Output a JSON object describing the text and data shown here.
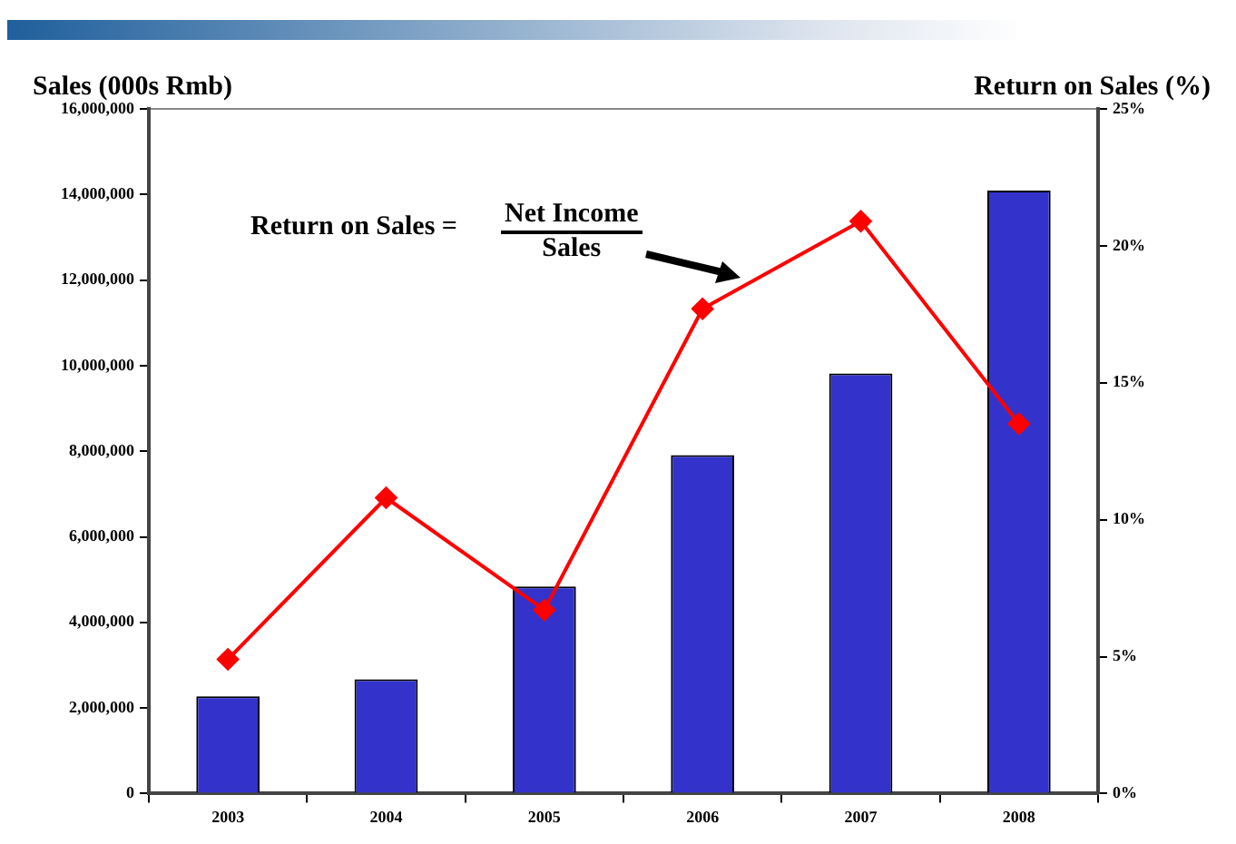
{
  "chart_data": {
    "type": "bar",
    "ylabel": "Sales (000s Rmb)",
    "y2label": "Return on Sales (%)",
    "categories": [
      "2003",
      "2004",
      "2005",
      "2006",
      "2007",
      "2008"
    ],
    "series": [
      {
        "color": "#3333cc",
        "values": [
          2270000,
          2670000,
          4840000,
          7910000,
          9820000,
          14090000
        ]
      },
      {
        "type": "line",
        "axis": "y2",
        "color": "#ff0000",
        "values": [
          4.9,
          10.8,
          6.7,
          17.7,
          20.9,
          13.5
        ]
      }
    ],
    "ylim": [
      0,
      16000000
    ],
    "yticks": [
      {
        "value": 0,
        "label": "0"
      },
      {
        "value": 2000000,
        "label": "2,000,000"
      },
      {
        "value": 4000000,
        "label": "4,000,000"
      },
      {
        "value": 6000000,
        "label": "6,000,000"
      },
      {
        "value": 8000000,
        "label": "8,000,000"
      },
      {
        "value": 10000000,
        "label": "10,000,000"
      },
      {
        "value": 12000000,
        "label": "12,000,000"
      },
      {
        "value": 14000000,
        "label": "14,000,000"
      },
      {
        "value": 16000000,
        "label": "16,000,000"
      }
    ],
    "y2lim": [
      0,
      25
    ],
    "y2ticks": [
      {
        "value": 0,
        "label": "0%"
      },
      {
        "value": 5,
        "label": "5%"
      },
      {
        "value": 10,
        "label": "10%"
      },
      {
        "value": 15,
        "label": "15%"
      },
      {
        "value": 20,
        "label": "20%"
      },
      {
        "value": 25,
        "label": "25%"
      }
    ],
    "annotations": [
      "Return on Sales =",
      "Net Income",
      "Sales"
    ],
    "grid": false,
    "legend": false,
    "marker": "diamond",
    "line_style": "solid"
  }
}
